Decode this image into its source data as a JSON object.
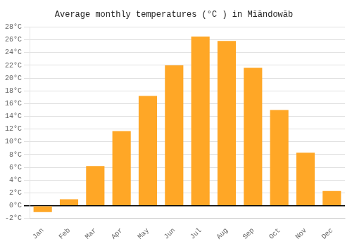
{
  "chart_data": {
    "type": "bar",
    "title": "Average monthly temperatures (°C ) in Mīāndowāb",
    "categories": [
      "Jan",
      "Feb",
      "Mar",
      "Apr",
      "May",
      "Jun",
      "Jul",
      "Aug",
      "Sep",
      "Oct",
      "Nov",
      "Dec"
    ],
    "values": [
      -1.0,
      1.0,
      6.2,
      11.7,
      17.2,
      22.0,
      26.5,
      25.8,
      21.6,
      15.0,
      8.3,
      2.3
    ],
    "color": "#FFA726",
    "ylim": [
      -2,
      28
    ],
    "yticks": [
      {
        "value": -2,
        "label": "-2°C"
      },
      {
        "value": 0,
        "label": "0°C"
      },
      {
        "value": 2,
        "label": "2°C"
      },
      {
        "value": 4,
        "label": "4°C"
      },
      {
        "value": 6,
        "label": "6°C"
      },
      {
        "value": 8,
        "label": "8°C"
      },
      {
        "value": 10,
        "label": "10°C"
      },
      {
        "value": 12,
        "label": "12°C"
      },
      {
        "value": 14,
        "label": "14°C"
      },
      {
        "value": 16,
        "label": "16°C"
      },
      {
        "value": 18,
        "label": "18°C"
      },
      {
        "value": 20,
        "label": "20°C"
      },
      {
        "value": 22,
        "label": "22°C"
      },
      {
        "value": 24,
        "label": "24°C"
      },
      {
        "value": 26,
        "label": "26°C"
      },
      {
        "value": 28,
        "label": "28°C"
      }
    ],
    "grid": true
  }
}
